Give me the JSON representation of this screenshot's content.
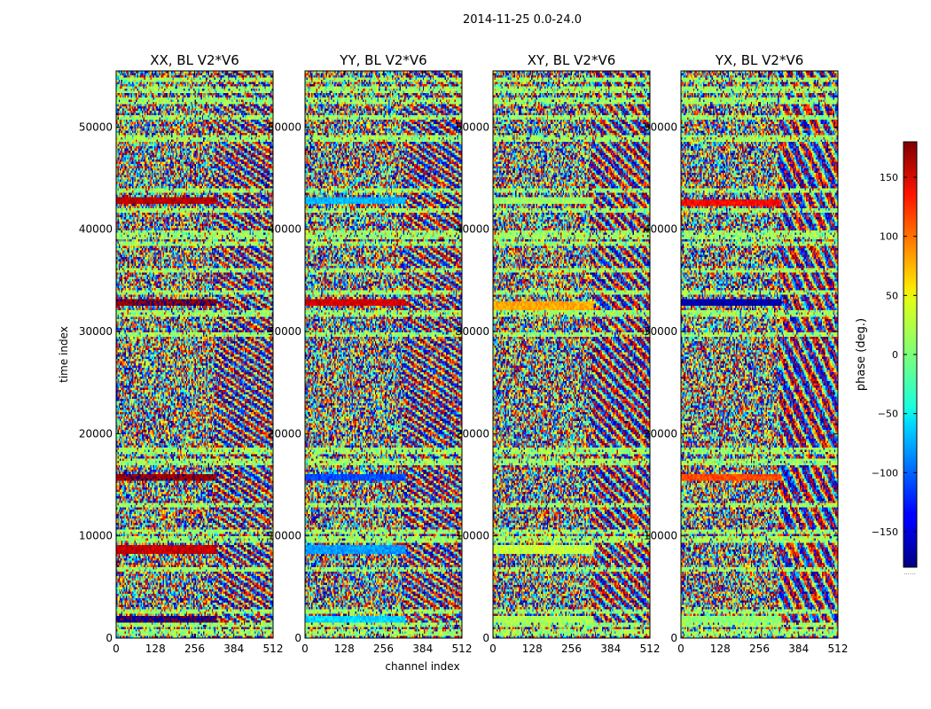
{
  "figure_title": "2014-11-25 0.0-24.0",
  "chart_data": {
    "type": "heatmap",
    "title": "2014-11-25 0.0-24.0",
    "xlabel": "channel index",
    "ylabel": "time index",
    "xlim": [
      0,
      512
    ],
    "ylim": [
      0,
      55500
    ],
    "x_ticks": [
      0,
      128,
      256,
      384,
      512
    ],
    "y_ticks": [
      0,
      10000,
      20000,
      30000,
      40000,
      50000
    ],
    "colormap": "jet",
    "colorbar": {
      "label": "phase (deg.)",
      "vmin": -180,
      "vmax": 180,
      "ticks": [
        -150,
        -100,
        -50,
        0,
        50,
        100,
        150
      ],
      "tick_labels": [
        "−150",
        "−100",
        "−50",
        "0",
        "50",
        "100",
        "150"
      ]
    },
    "panels": [
      {
        "title": "XX, BL V2*V6",
        "seed": 11,
        "show_ylabel": true,
        "show_xlabel": false,
        "stripes": [
          [
            1900,
            480,
            -175
          ],
          [
            8700,
            620,
            155
          ],
          [
            15700,
            560,
            170
          ],
          [
            32800,
            560,
            175
          ],
          [
            42900,
            450,
            160
          ]
        ]
      },
      {
        "title": "YY, BL V2*V6",
        "seed": 23,
        "show_ylabel": false,
        "show_xlabel": true,
        "stripes": [
          [
            1900,
            480,
            -60
          ],
          [
            8700,
            620,
            -80
          ],
          [
            15700,
            560,
            -110
          ],
          [
            32800,
            560,
            150
          ],
          [
            42900,
            450,
            -70
          ]
        ]
      },
      {
        "title": "XY, BL V2*V6",
        "seed": 37,
        "show_ylabel": false,
        "show_xlabel": false,
        "stripes": [
          [
            1900,
            480,
            15
          ],
          [
            8700,
            620,
            25
          ],
          [
            32500,
            560,
            75
          ],
          [
            42900,
            450,
            10
          ]
        ]
      },
      {
        "title": "YX, BL V2*V6",
        "seed": 51,
        "show_ylabel": false,
        "show_xlabel": false,
        "stripes": [
          [
            1900,
            480,
            5
          ],
          [
            15700,
            560,
            110
          ],
          [
            32800,
            560,
            -165
          ],
          [
            42600,
            450,
            135
          ]
        ]
      }
    ],
    "blank_bands": [
      [
        500,
        400
      ],
      [
        1300,
        300
      ],
      [
        2600,
        250
      ],
      [
        6700,
        300
      ],
      [
        9600,
        350
      ],
      [
        10400,
        300
      ],
      [
        13000,
        200
      ],
      [
        17200,
        500
      ],
      [
        18300,
        300
      ],
      [
        29700,
        200
      ],
      [
        31800,
        300
      ],
      [
        33800,
        200
      ],
      [
        36000,
        400
      ],
      [
        38600,
        300
      ],
      [
        39500,
        700
      ],
      [
        41900,
        300
      ],
      [
        43800,
        300
      ],
      [
        48800,
        400
      ],
      [
        51000,
        300
      ],
      [
        52600,
        500
      ],
      [
        53600,
        350
      ],
      [
        54600,
        300
      ]
    ],
    "colorbar_footer": "......"
  }
}
